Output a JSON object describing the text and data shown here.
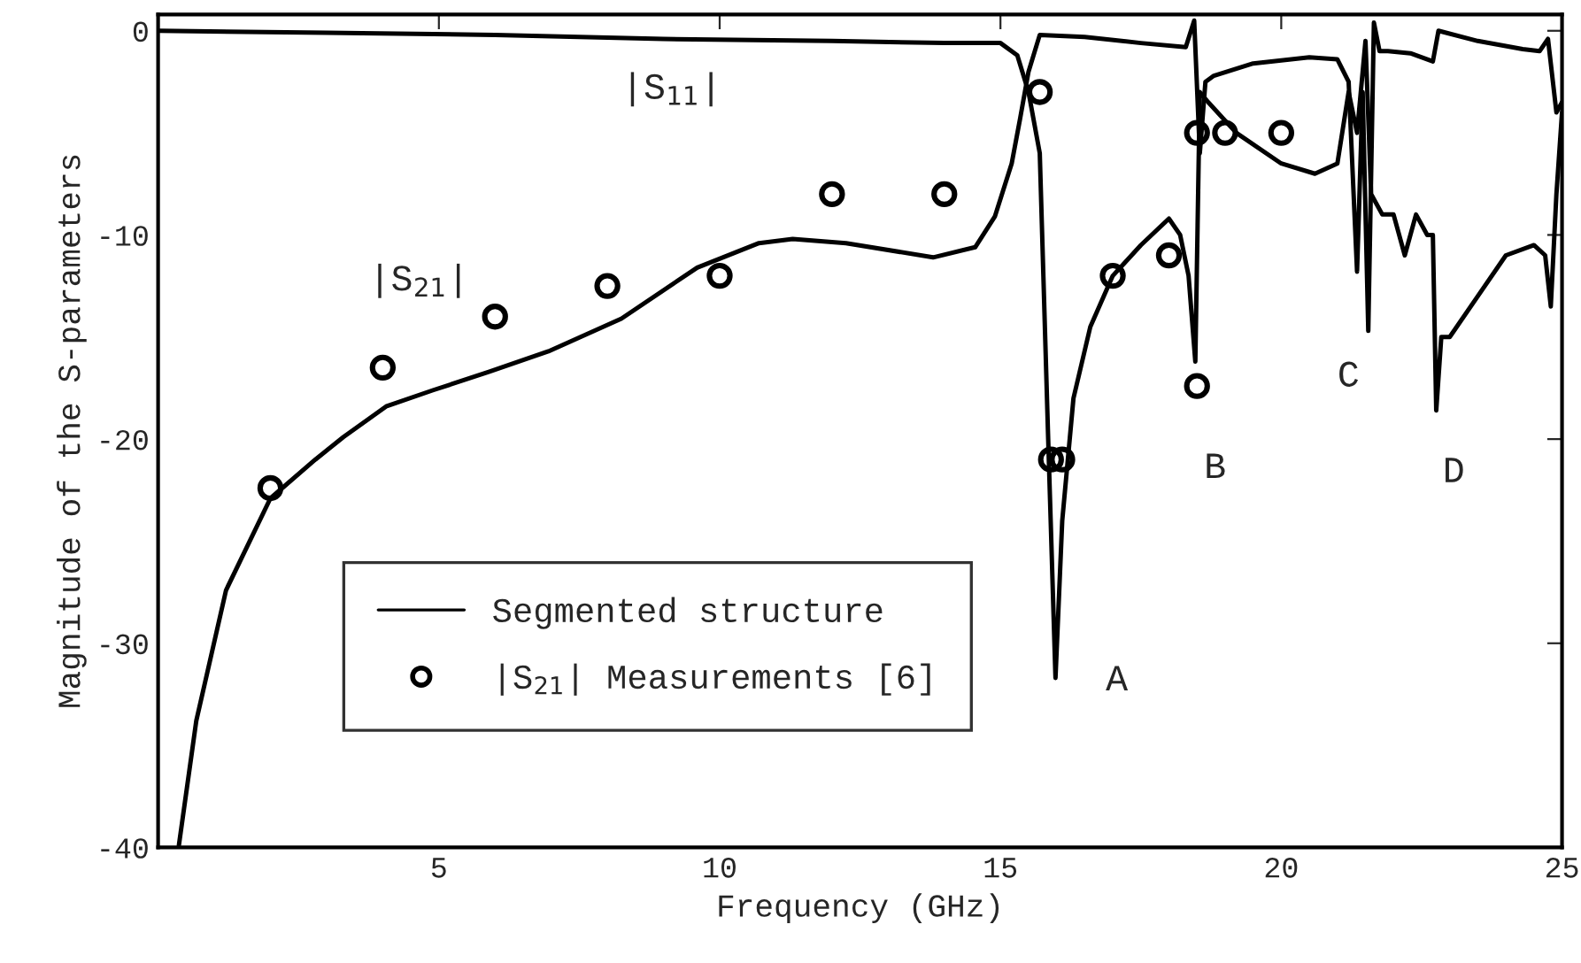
{
  "chart_data": {
    "type": "line",
    "xlabel": "Frequency (GHz)",
    "ylabel": "Magnitude of the S-parameters",
    "xlim": [
      0,
      25
    ],
    "ylim": [
      -40,
      0.8
    ],
    "xticks": [
      5,
      10,
      15,
      20,
      25
    ],
    "yticks": [
      0,
      -10,
      -20,
      -30,
      -40
    ],
    "grid": false,
    "legend": "bottom left",
    "line_style": "solid",
    "series": [
      {
        "name": "Segmented structure",
        "color": "#000000",
        "x": [
          0.37,
          0.68,
          1.21,
          2.0,
          2.8,
          3.3,
          4.06,
          4.9,
          5.9,
          6.95,
          8.25,
          9.6,
          10.7,
          11.3,
          12.25,
          13.8,
          14.55,
          14.9,
          15.2,
          15.35,
          15.5,
          15.7,
          16.5,
          17.5,
          18.3,
          18.45,
          18.55,
          18.65,
          18.8,
          19.5,
          20.5,
          21.0,
          21.2,
          21.35,
          21.45,
          21.55,
          21.65,
          21.75,
          21.9,
          22.3,
          22.7,
          22.8,
          23.5,
          24.3,
          24.6,
          24.75,
          24.9,
          25
        ],
        "values": [
          -39.9,
          -33.8,
          -27.4,
          -22.9,
          -21,
          -19.9,
          -18.4,
          -17.6,
          -16.7,
          -15.7,
          -14.1,
          -11.6,
          -10.4,
          -10.2,
          -10.4,
          -11.1,
          -10.6,
          -9.1,
          -6.5,
          -4.3,
          -2,
          -0.2,
          -0.3,
          -0.6,
          -0.8,
          0.5,
          -6,
          -2.5,
          -2.2,
          -1.6,
          -1.3,
          -1.4,
          -2.5,
          -11.8,
          -3,
          -14.7,
          0.4,
          -1,
          -1,
          -1.1,
          -1.5,
          0,
          -0.5,
          -0.9,
          -1,
          -0.4,
          -4,
          -3.5
        ]
      },
      {
        "color": "#000000",
        "x": [
          0,
          3,
          6,
          9,
          12,
          14,
          15,
          15.3,
          15.5,
          15.7,
          15.85,
          15.98,
          16.1,
          16.3,
          16.6,
          17,
          17.5,
          18.0,
          18.2,
          18.35,
          18.47,
          18.55,
          18.7,
          19.2,
          20,
          20.6,
          21.0,
          21.2,
          21.35,
          21.5,
          21.6,
          21.8,
          22.0,
          22.2,
          22.4,
          22.6,
          22.7,
          22.76,
          22.85,
          23.0,
          23.5,
          24.0,
          24.5,
          24.7,
          24.8,
          24.9,
          25
        ],
        "values": [
          0,
          -0.1,
          -0.2,
          -0.4,
          -0.5,
          -0.6,
          -0.6,
          -1.2,
          -3,
          -6,
          -20,
          -31.7,
          -24,
          -18,
          -14.5,
          -12,
          -10.5,
          -9.2,
          -10,
          -12,
          -16.2,
          -3,
          -3.5,
          -5,
          -6.5,
          -7,
          -6.5,
          -3,
          -5,
          -0.5,
          -8,
          -9,
          -9,
          -11,
          -9,
          -10,
          -10,
          -18.6,
          -15,
          -15,
          -13,
          -11,
          -10.5,
          -11,
          -13.5,
          -8,
          -4
        ]
      },
      {
        "name": "|S$_{21}$| Measurements [6]",
        "type": "scatter",
        "marker": "circle",
        "color": "#000000",
        "x": [
          2,
          4,
          6,
          8,
          10,
          12,
          14,
          15.7,
          15.9,
          16.1,
          17,
          18,
          18.5,
          18.5,
          19,
          20
        ],
        "values": [
          -22.4,
          -16.5,
          -14,
          -12.5,
          -12,
          -8,
          -8,
          -3,
          -21,
          -21,
          -12,
          -11,
          -17.4,
          -5,
          -5,
          -5
        ]
      }
    ],
    "annotations": [
      "|S$_{11}$|",
      "|S$_{21}$|",
      "A",
      "B",
      "C",
      "D"
    ]
  }
}
